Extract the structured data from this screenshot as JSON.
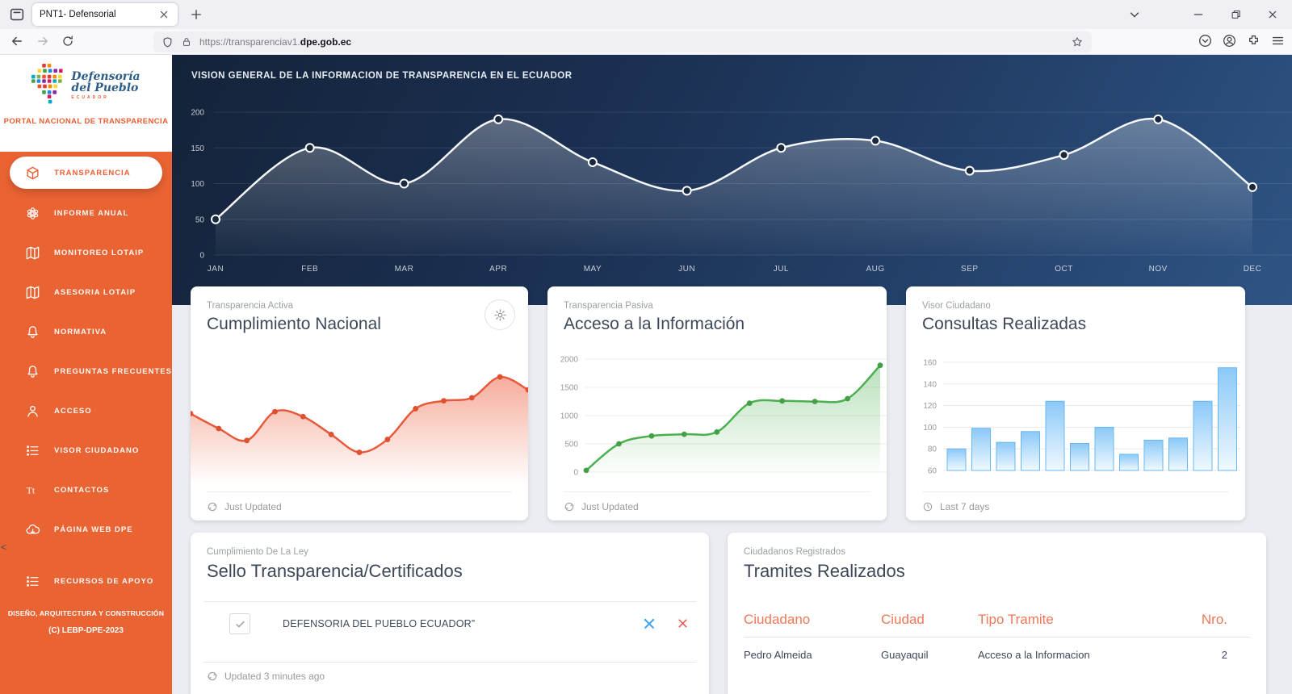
{
  "browser": {
    "tab_title": "PNT1- Defensorial",
    "url_prefix": "https://transparenciav1.",
    "url_domain": "dpe.gob.ec"
  },
  "sidebar": {
    "brand": {
      "line1": "Defensoría",
      "line2": "del Pueblo",
      "sub": "ECUADOR"
    },
    "portal_title": "PORTAL NACIONAL DE TRANSPARENCIA",
    "items": [
      {
        "label": "TRANSPARENCIA",
        "icon": "cube",
        "active": true
      },
      {
        "label": "INFORME ANUAL",
        "icon": "atom"
      },
      {
        "label": "MONITOREO LOTAIP",
        "icon": "map"
      },
      {
        "label": "ASESORIA LOTAIP",
        "icon": "map"
      },
      {
        "label": "NORMATIVA",
        "icon": "bell"
      },
      {
        "label": "PREGUNTAS FRECUENTES",
        "icon": "bell"
      },
      {
        "label": "ACCESO",
        "icon": "person"
      },
      {
        "label": "VISOR CIUDADANO",
        "icon": "list"
      },
      {
        "label": "CONTACTOS",
        "icon": "textT"
      },
      {
        "label": "PÁGINA WEB DPE",
        "icon": "cloud",
        "gap_after": true
      },
      {
        "label": "RECURSOS DE APOYO",
        "icon": "list",
        "gap_before": true
      }
    ],
    "collapse_arrow": "<",
    "footer": {
      "line1": "DISEÑO, ARQUITECTURA Y CONSTRUCCIÓN",
      "line2": "(C) LEBP-DPE-2023"
    }
  },
  "chart_data": [
    {
      "id": "overview",
      "type": "line",
      "title": "VISION GENERAL DE LA INFORMACION DE TRANSPARENCIA EN EL ECUADOR",
      "categories": [
        "JAN",
        "FEB",
        "MAR",
        "APR",
        "MAY",
        "JUN",
        "JUL",
        "AUG",
        "SEP",
        "OCT",
        "NOV",
        "DEC"
      ],
      "values": [
        50,
        150,
        100,
        190,
        130,
        90,
        150,
        160,
        118,
        140,
        190,
        95
      ],
      "ylim": [
        0,
        200
      ],
      "yticks": [
        200,
        150,
        100,
        50,
        0
      ],
      "line_color": "#f5f7fa",
      "grid": true,
      "legend": "none"
    },
    {
      "id": "cumplimiento",
      "type": "area",
      "title": "Cumplimiento Nacional",
      "values": [
        54,
        39,
        27,
        56,
        51,
        33,
        15,
        28,
        59,
        67,
        70,
        91,
        78
      ],
      "ylim": [
        0,
        100
      ],
      "line_color": "#e8593b",
      "grid": false
    },
    {
      "id": "acceso",
      "type": "area",
      "title": "Acceso a la Información",
      "values": [
        30,
        500,
        640,
        670,
        710,
        1220,
        1260,
        1250,
        1300,
        1890
      ],
      "ylim": [
        0,
        2000
      ],
      "yticks": [
        2000,
        1500,
        1000,
        500,
        0
      ],
      "line_color": "#4caf50",
      "grid": true
    },
    {
      "id": "consultas",
      "type": "bar",
      "title": "Consultas Realizadas",
      "values": [
        80,
        99,
        86,
        96,
        124,
        85,
        100,
        75,
        88,
        90,
        124,
        155
      ],
      "ylim": [
        60,
        160
      ],
      "yticks": [
        160,
        140,
        120,
        100,
        80,
        60
      ],
      "bar_color": "#7cc3f5",
      "grid": true
    }
  ],
  "cards": {
    "cumplimiento": {
      "category": "Transparencia Activa",
      "title": "Cumplimiento Nacional",
      "footer": "Just Updated"
    },
    "acceso": {
      "category": "Transparencia Pasiva",
      "title": "Acceso a la Información",
      "footer": "Just Updated"
    },
    "consultas": {
      "category": "Visor Ciudadano",
      "title": "Consultas Realizadas",
      "footer": "Last 7 days"
    },
    "sello": {
      "category": "Cumplimiento De La Ley",
      "title": "Sello Transparencia/Certificados",
      "entry": "DEFENSORIA DEL PUEBLO ECUADOR”",
      "footer": "Updated 3 minutes ago"
    },
    "tramites": {
      "category": "Ciudadanos Registrados",
      "title": "Tramites Realizados",
      "columns": [
        "Ciudadano",
        "Ciudad",
        "Tipo Tramite",
        "Nro."
      ],
      "rows": [
        [
          "Pedro Almeida",
          "Guayaquil",
          "Acceso a la Informacion",
          "2"
        ]
      ]
    }
  },
  "colors": {
    "accent_orange": "#ea6333",
    "navy_dark": "#142339",
    "navy_light": "#2f5484",
    "line_white": "#f5f7fa",
    "line_red": "#e8593b",
    "line_green": "#4caf50",
    "bar_blue": "#7cc3f5",
    "table_header_orange": "#ee7757"
  }
}
